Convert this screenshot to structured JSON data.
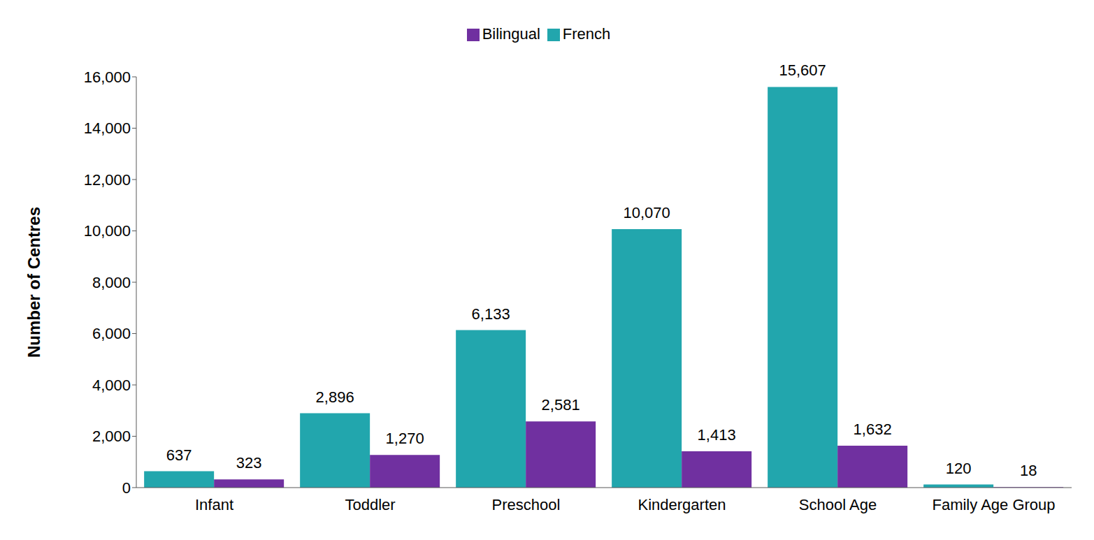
{
  "chart_data": {
    "type": "bar",
    "y_label": "Number of Centres",
    "categories": [
      "Infant",
      "Toddler",
      "Preschool",
      "Kindergarten",
      "School Age",
      "Family Age Group"
    ],
    "series": [
      {
        "name": "French",
        "color": "#22a6ad",
        "values": [
          637,
          2896,
          6133,
          10070,
          15607,
          120
        ],
        "value_labels": [
          "637",
          "2,896",
          "6,133",
          "10,070",
          "15,607",
          "120"
        ]
      },
      {
        "name": "Bilingual",
        "color": "#7030a0",
        "values": [
          323,
          1270,
          2581,
          1413,
          1632,
          18
        ],
        "value_labels": [
          "323",
          "1,270",
          "2,581",
          "1,413",
          "1,632",
          "18"
        ]
      }
    ],
    "ylim": [
      0,
      16000
    ],
    "yticks": [
      0,
      {
        "value": 2000,
        "label": "2,000"
      },
      {
        "value": 4000,
        "label": "4,000"
      },
      {
        "value": 6000,
        "label": "6,000"
      },
      {
        "value": 8000,
        "label": "8,000"
      },
      {
        "value": 10000,
        "label": "10,000"
      },
      {
        "value": 12000,
        "label": "12,000"
      },
      {
        "value": 14000,
        "label": "14,000"
      },
      {
        "value": 16000,
        "label": "16,000"
      }
    ],
    "grid": false,
    "legend": "top",
    "data_labels": true
  }
}
